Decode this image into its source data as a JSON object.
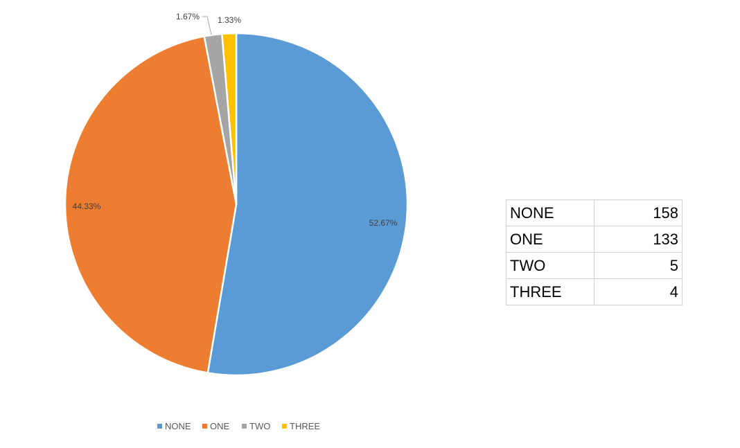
{
  "chart_data": {
    "type": "pie",
    "categories": [
      "NONE",
      "ONE",
      "TWO",
      "THREE"
    ],
    "values": [
      158,
      133,
      5,
      4
    ],
    "percent_labels": [
      "52.67%",
      "44.33%",
      "1.67%",
      "1.33%"
    ],
    "colors": [
      "#5b9bd5",
      "#ed7d31",
      "#a5a5a5",
      "#ffc000"
    ],
    "start_angle": "12 o'clock, clockwise",
    "legend": {
      "placement": "bottom",
      "items": [
        "NONE",
        "ONE",
        "TWO",
        "THREE"
      ]
    }
  },
  "table": {
    "rows": [
      {
        "category": "NONE",
        "value": "158"
      },
      {
        "category": "ONE",
        "value": "133"
      },
      {
        "category": "TWO",
        "value": "5"
      },
      {
        "category": "THREE",
        "value": "4"
      }
    ]
  }
}
